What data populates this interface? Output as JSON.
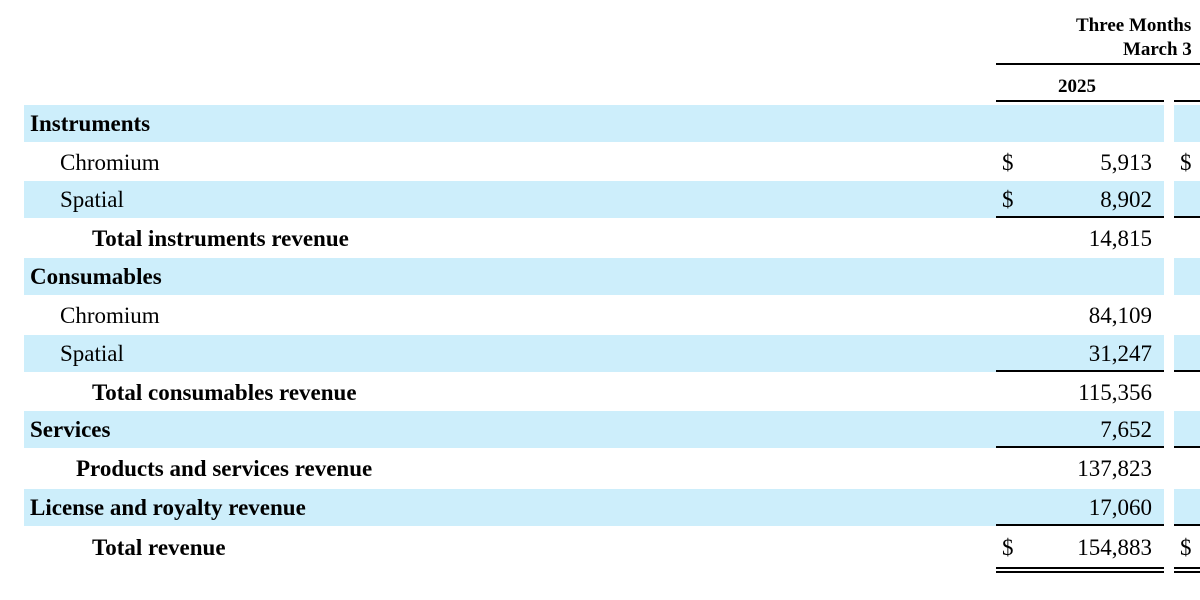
{
  "header": {
    "period_line1": "Three Months",
    "period_line2": "March 3",
    "year": "2025"
  },
  "table": {
    "rows": [
      {
        "label": "Instruments",
        "level": 0,
        "bold": true,
        "value": "",
        "dollar": "",
        "dollar2": "",
        "shaded": true
      },
      {
        "label": "Chromium",
        "level": 1,
        "bold": false,
        "value": "5,913",
        "dollar": "$",
        "dollar2": "$",
        "shaded": false
      },
      {
        "label": "Spatial",
        "level": 1,
        "bold": false,
        "value": "8,902",
        "dollar": "$",
        "dollar2": "",
        "shaded": true
      },
      {
        "label": "Total instruments revenue",
        "level": 2,
        "bold": true,
        "value": "14,815",
        "dollar": "",
        "dollar2": "",
        "shaded": false
      },
      {
        "label": "Consumables",
        "level": 0,
        "bold": true,
        "value": "",
        "dollar": "",
        "dollar2": "",
        "shaded": true
      },
      {
        "label": "Chromium",
        "level": 1,
        "bold": false,
        "value": "84,109",
        "dollar": "",
        "dollar2": "",
        "shaded": false
      },
      {
        "label": "Spatial",
        "level": 1,
        "bold": false,
        "value": "31,247",
        "dollar": "",
        "dollar2": "",
        "shaded": true
      },
      {
        "label": "Total consumables revenue",
        "level": 2,
        "bold": true,
        "value": "115,356",
        "dollar": "",
        "dollar2": "",
        "shaded": false
      },
      {
        "label": "Services",
        "level": 0,
        "bold": true,
        "value": "7,652",
        "dollar": "",
        "dollar2": "",
        "shaded": true
      },
      {
        "label": "Products and services revenue",
        "level": 3,
        "bold": true,
        "value": "137,823",
        "dollar": "",
        "dollar2": "",
        "shaded": false
      },
      {
        "label": "License and royalty revenue",
        "level": 0,
        "bold": true,
        "value": "17,060",
        "dollar": "",
        "dollar2": "",
        "shaded": true
      },
      {
        "label": "Total revenue",
        "level": 2,
        "bold": true,
        "value": "154,883",
        "dollar": "$",
        "dollar2": "$",
        "shaded": false
      }
    ]
  }
}
